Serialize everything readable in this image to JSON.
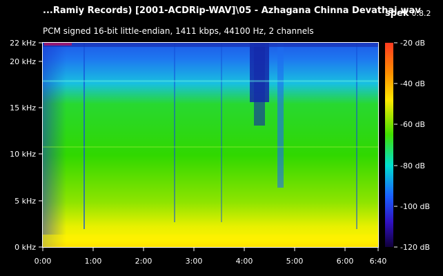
{
  "header": {
    "file_title": "...Ramiy Records) [2001-ACDRip-WAV]\\05 - Azhagana Chinna Devathai.wav",
    "app_name": "spek",
    "app_version": "0.8.2",
    "stream_info": "PCM signed 16-bit little-endian, 1411 kbps, 44100 Hz, 2 channels"
  },
  "frequency_axis": {
    "labels": [
      "22 kHz",
      "20 kHz",
      "15 kHz",
      "10 kHz",
      "5 kHz",
      "0 kHz"
    ],
    "values_khz": [
      22,
      20,
      15,
      10,
      5,
      0
    ]
  },
  "time_axis": {
    "labels": [
      "0:00",
      "1:00",
      "2:00",
      "3:00",
      "4:00",
      "5:00",
      "6:00",
      "6:40"
    ],
    "values_s": [
      0,
      60,
      120,
      180,
      240,
      300,
      360,
      400
    ]
  },
  "db_scale": {
    "labels": [
      "-20 dB",
      "-40 dB",
      "-60 dB",
      "-80 dB",
      "-100 dB",
      "-120 dB"
    ],
    "values_db": [
      -20,
      -40,
      -60,
      -80,
      -100,
      -120
    ],
    "gradient_colors": [
      "#ffffff",
      "#ff2a1a",
      "#ffb000",
      "#ffff00",
      "#00ee00",
      "#00e8e8",
      "#1a5cff",
      "#3a1ad0",
      "#1a0060",
      "#000000"
    ]
  },
  "spectrogram": {
    "colors": {
      "loud": "#fff200",
      "mid": "#9be800",
      "green": "#22d400",
      "cyan": "#18c8d8",
      "blue": "#1e6cf0",
      "deep": "#1830c8"
    }
  }
}
